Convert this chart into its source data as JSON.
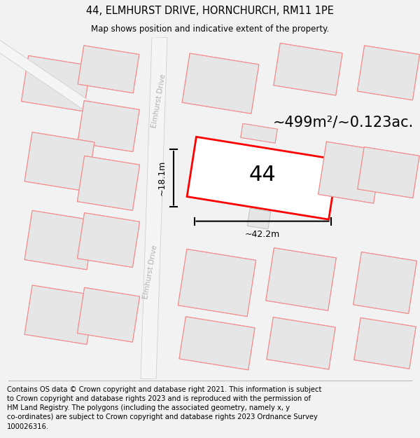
{
  "title": "44, ELMHURST DRIVE, HORNCHURCH, RM11 1PE",
  "subtitle": "Map shows position and indicative extent of the property.",
  "footer": "Contains OS data © Crown copyright and database right 2021. This information is subject\nto Crown copyright and database rights 2023 and is reproduced with the permission of\nHM Land Registry. The polygons (including the associated geometry, namely x, y\nco-ordinates) are subject to Crown copyright and database rights 2023 Ordnance Survey\n100026316.",
  "bg_color": "#f2f2f2",
  "map_bg": "#ffffff",
  "block_fill": "#e6e6e6",
  "block_stroke": "#c0c0c0",
  "red_outline": "#ff8888",
  "highlight_stroke": "#ff0000",
  "area_label": "~499m²/~0.123ac.",
  "width_label": "~42.2m",
  "height_label": "~18.1m",
  "street_label": "Elmhurst Drive",
  "title_fontsize": 10.5,
  "subtitle_fontsize": 8.5,
  "footer_fontsize": 7.2
}
